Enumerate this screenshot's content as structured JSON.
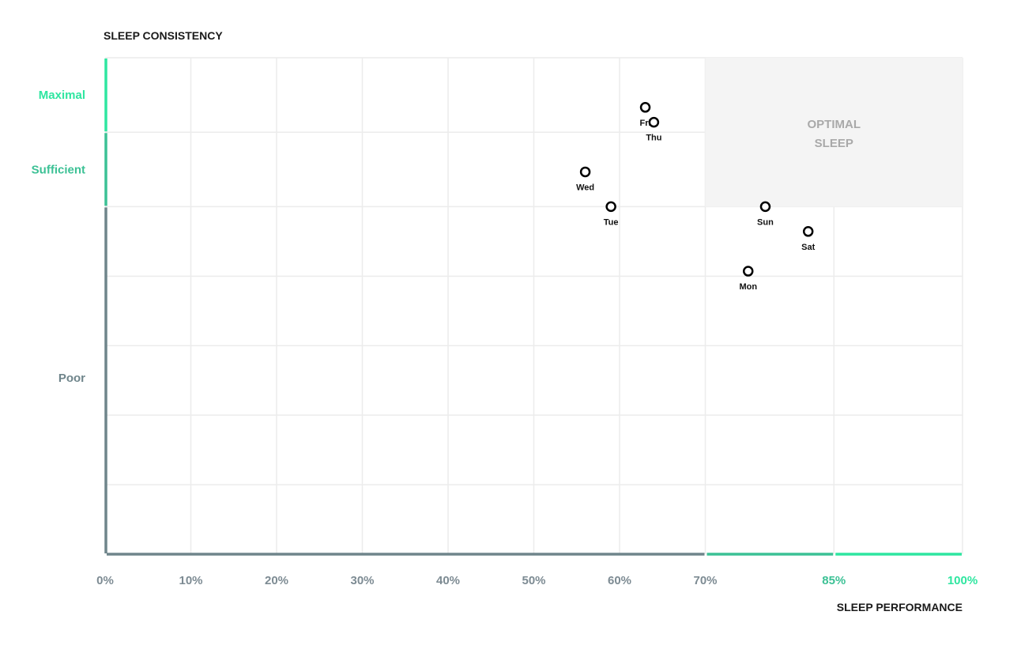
{
  "chart_data": {
    "type": "scatter",
    "title": "",
    "xlabel": "SLEEP PERFORMANCE",
    "ylabel": "SLEEP CONSISTENCY",
    "xlim": [
      0,
      100
    ],
    "ylim": [
      0,
      100
    ],
    "x_ticks": [
      "0%",
      "10%",
      "20%",
      "30%",
      "40%",
      "50%",
      "60%",
      "70%",
      "85%",
      "100%"
    ],
    "x_tick_values": [
      0,
      10,
      20,
      30,
      40,
      50,
      60,
      70,
      85,
      100
    ],
    "y_categories": [
      {
        "label": "Maximal",
        "range": [
          85,
          100
        ],
        "color": "#2ee6a0"
      },
      {
        "label": "Sufficient",
        "range": [
          70,
          85
        ],
        "color": "#3cc195"
      },
      {
        "label": "Poor",
        "range": [
          0,
          70
        ],
        "color": "#6f858b"
      }
    ],
    "x_bands": [
      {
        "range": [
          0,
          70
        ],
        "color": "#6f858b"
      },
      {
        "range": [
          70,
          85
        ],
        "color": "#3cc195"
      },
      {
        "range": [
          85,
          100
        ],
        "color": "#2ee6a0"
      }
    ],
    "grid": true,
    "y_gridlines": [
      14,
      28,
      42,
      56,
      70,
      85,
      100
    ],
    "region": {
      "label_lines": [
        "OPTIMAL",
        "SLEEP"
      ],
      "x": [
        70,
        100
      ],
      "y": [
        70,
        100
      ],
      "color": "#f4f4f4"
    },
    "points": [
      {
        "label": "Fri",
        "x": 63,
        "y": 90
      },
      {
        "label": "Thu",
        "x": 64,
        "y": 87
      },
      {
        "label": "Wed",
        "x": 56,
        "y": 77
      },
      {
        "label": "Tue",
        "x": 59,
        "y": 70
      },
      {
        "label": "Sun",
        "x": 77,
        "y": 70
      },
      {
        "label": "Sat",
        "x": 82,
        "y": 65
      },
      {
        "label": "Mon",
        "x": 75,
        "y": 57
      }
    ]
  }
}
